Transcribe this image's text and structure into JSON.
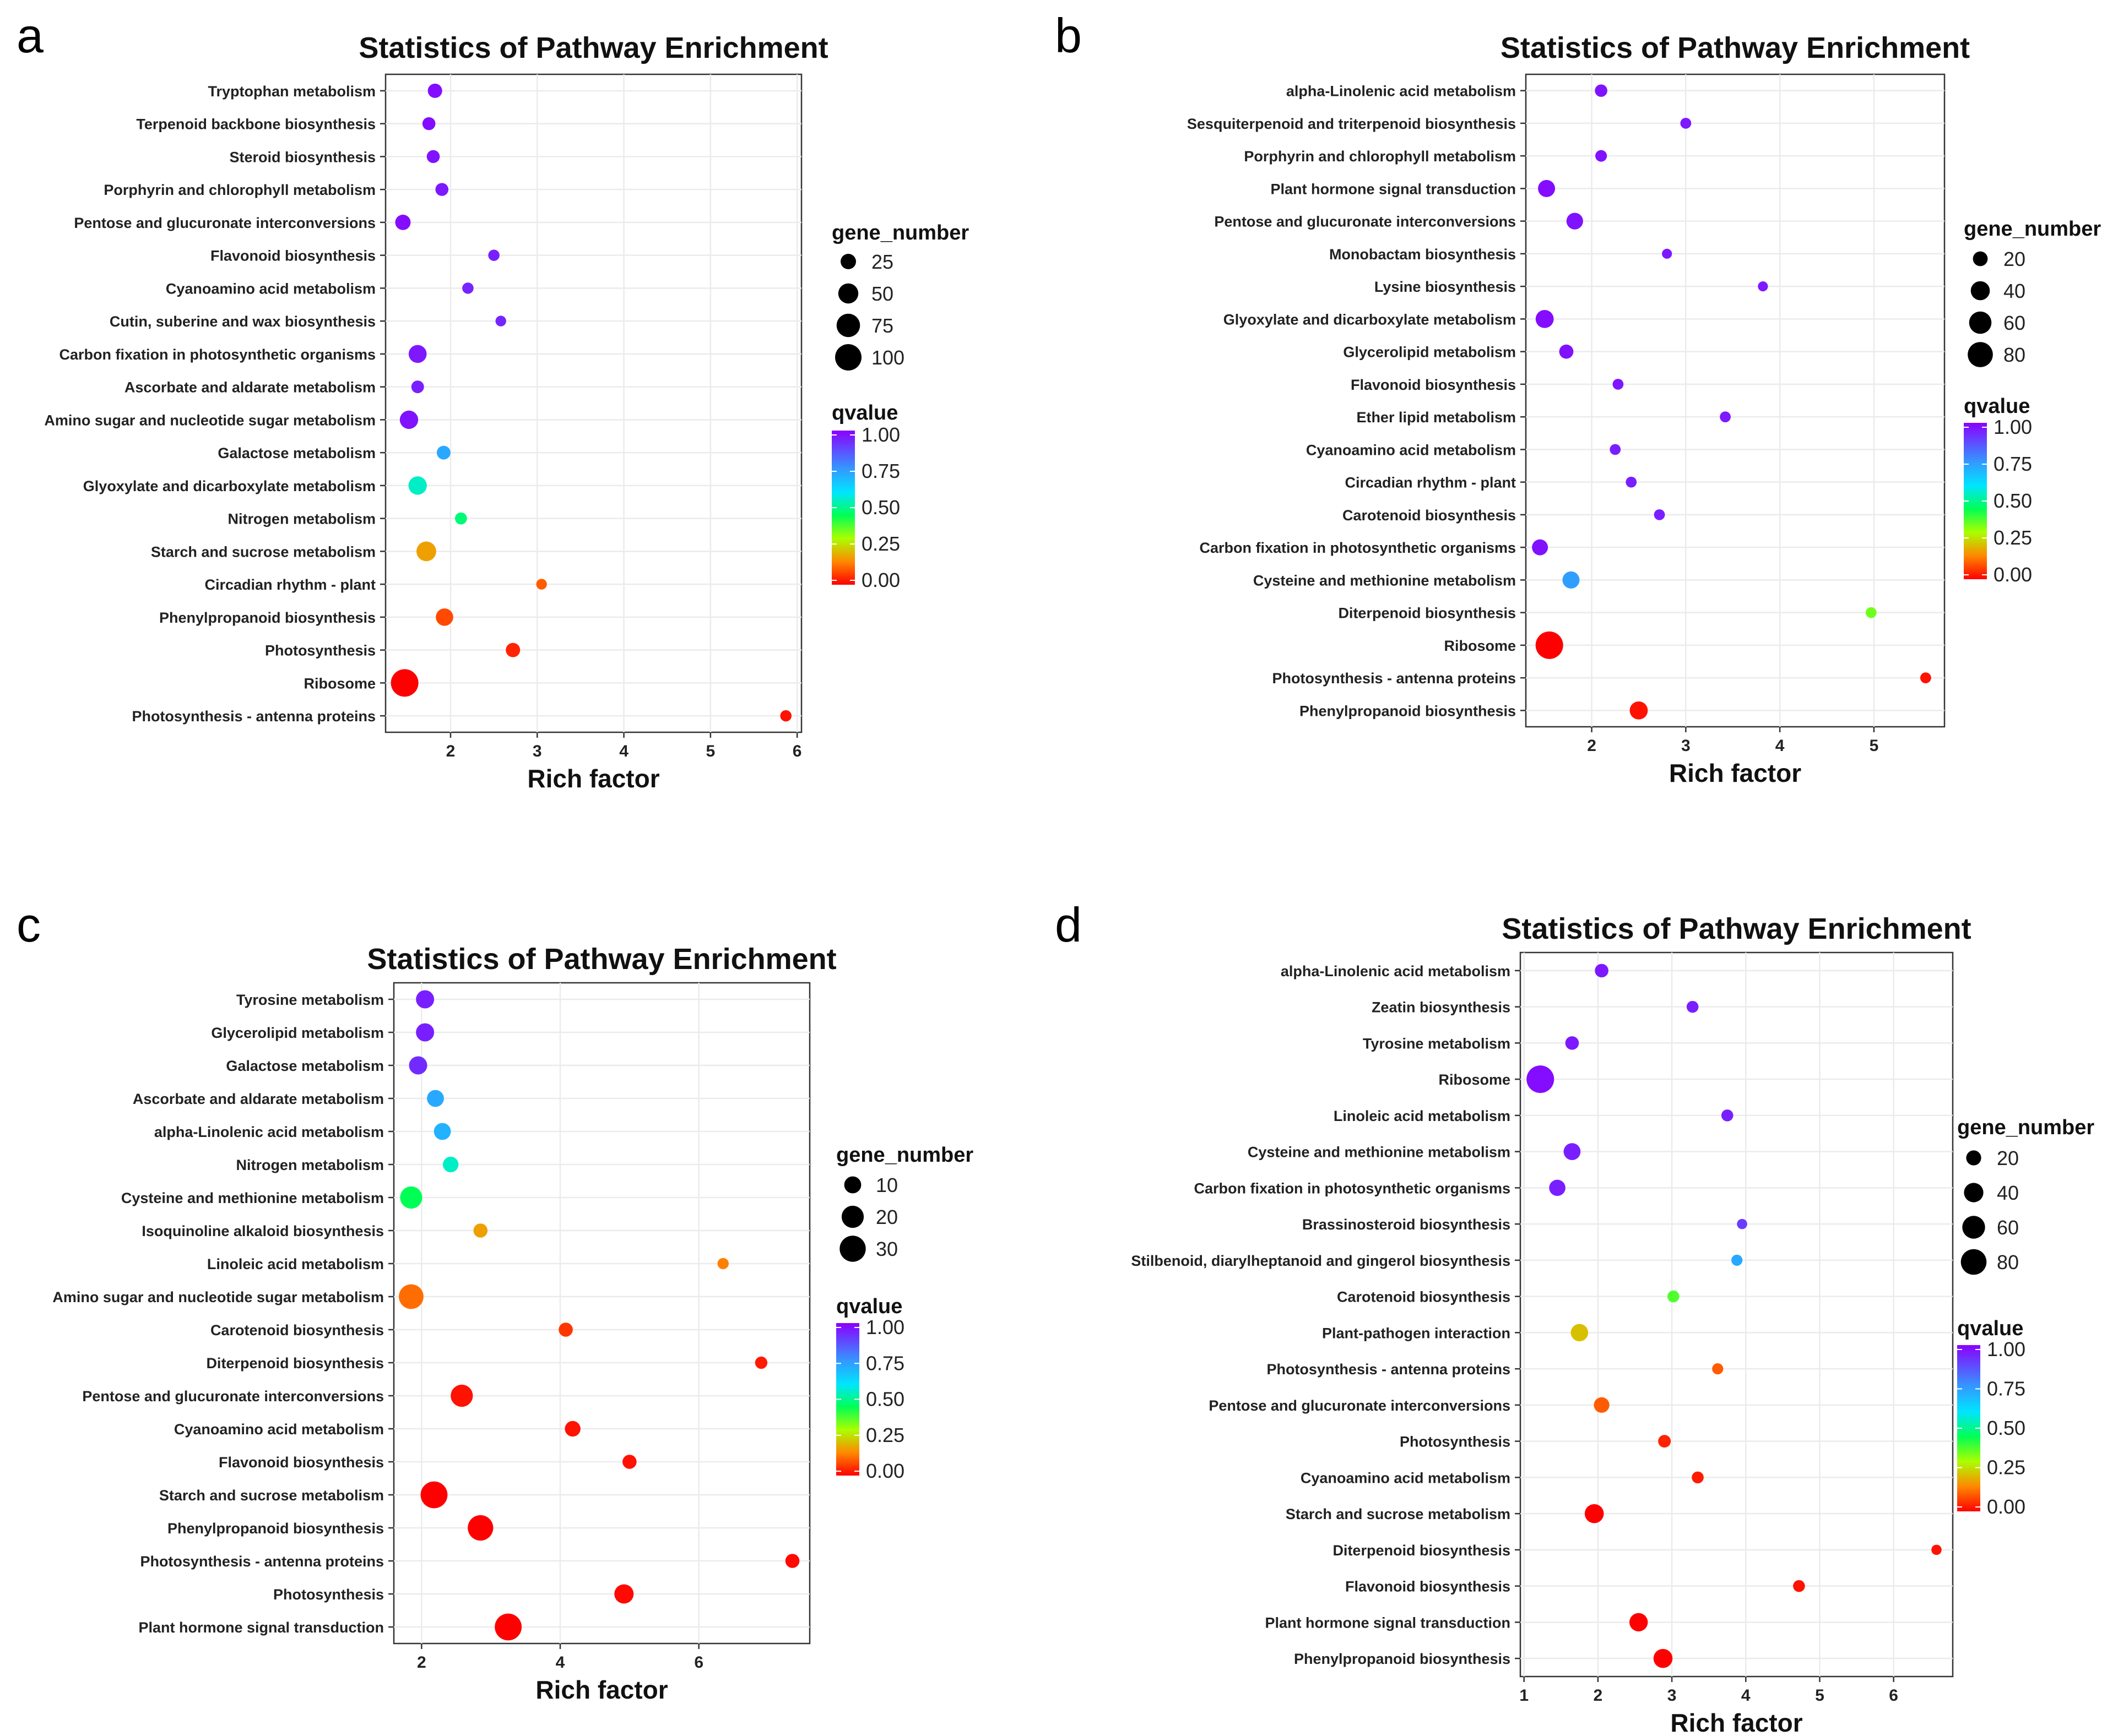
{
  "panels": [
    {
      "letter": "a",
      "chart_data": {
        "type": "scatter",
        "title": "Statistics of Pathway Enrichment",
        "xlabel": "Rich factor",
        "ylabel": "",
        "xlim": [
          1.25,
          6.05
        ],
        "xticks": [
          2,
          3,
          4,
          5,
          6
        ],
        "legend_placement": "right",
        "size_legend": {
          "title": "gene_number",
          "values": [
            25,
            50,
            75,
            100
          ]
        },
        "color_legend": {
          "title": "qvalue",
          "ticks": [
            "1.00",
            "0.75",
            "0.50",
            "0.25",
            "0.00"
          ]
        },
        "points": [
          {
            "label": "Tryptophan metabolism",
            "x": 1.82,
            "gene_number": 20,
            "qvalue": 0.98
          },
          {
            "label": "Terpenoid backbone biosynthesis",
            "x": 1.75,
            "gene_number": 15,
            "qvalue": 0.98
          },
          {
            "label": "Steroid biosynthesis",
            "x": 1.8,
            "gene_number": 15,
            "qvalue": 0.97
          },
          {
            "label": "Porphyrin and chlorophyll metabolism",
            "x": 1.9,
            "gene_number": 15,
            "qvalue": 0.96
          },
          {
            "label": "Pentose and glucuronate interconversions",
            "x": 1.45,
            "gene_number": 25,
            "qvalue": 0.98
          },
          {
            "label": "Flavonoid biosynthesis",
            "x": 2.5,
            "gene_number": 10,
            "qvalue": 0.95
          },
          {
            "label": "Cyanoamino acid metabolism",
            "x": 2.2,
            "gene_number": 10,
            "qvalue": 0.94
          },
          {
            "label": "Cutin, suberine and wax biosynthesis",
            "x": 2.58,
            "gene_number": 8,
            "qvalue": 0.94
          },
          {
            "label": "Carbon fixation in photosynthetic organisms",
            "x": 1.62,
            "gene_number": 38,
            "qvalue": 0.96
          },
          {
            "label": "Ascorbate and aldarate metabolism",
            "x": 1.62,
            "gene_number": 14,
            "qvalue": 0.95
          },
          {
            "label": "Amino sugar and nucleotide sugar metabolism",
            "x": 1.52,
            "gene_number": 40,
            "qvalue": 0.97
          },
          {
            "label": "Galactose metabolism",
            "x": 1.92,
            "gene_number": 18,
            "qvalue": 0.72
          },
          {
            "label": "Glyoxylate and dicarboxylate metabolism",
            "x": 1.62,
            "gene_number": 40,
            "qvalue": 0.55
          },
          {
            "label": "Nitrogen metabolism",
            "x": 2.12,
            "gene_number": 12,
            "qvalue": 0.48
          },
          {
            "label": "Starch and sucrose metabolism",
            "x": 1.72,
            "gene_number": 48,
            "qvalue": 0.18
          },
          {
            "label": "Circadian rhythm - plant",
            "x": 3.05,
            "gene_number": 8,
            "qvalue": 0.1
          },
          {
            "label": "Phenylpropanoid biosynthesis",
            "x": 1.93,
            "gene_number": 35,
            "qvalue": 0.08
          },
          {
            "label": "Photosynthesis",
            "x": 2.72,
            "gene_number": 20,
            "qvalue": 0.04
          },
          {
            "label": "Ribosome",
            "x": 1.47,
            "gene_number": 110,
            "qvalue": 0.0
          },
          {
            "label": "Photosynthesis - antenna proteins",
            "x": 5.87,
            "gene_number": 10,
            "qvalue": 0.02
          }
        ]
      }
    },
    {
      "letter": "b",
      "chart_data": {
        "type": "scatter",
        "title": "Statistics of Pathway Enrichment",
        "xlabel": "Rich factor",
        "ylabel": "",
        "xlim": [
          1.3,
          5.75
        ],
        "xticks": [
          2,
          3,
          4,
          5
        ],
        "legend_placement": "right",
        "size_legend": {
          "title": "gene_number",
          "values": [
            20,
            40,
            60,
            80
          ]
        },
        "color_legend": {
          "title": "qvalue",
          "ticks": [
            "1.00",
            "0.75",
            "0.50",
            "0.25",
            "0.00"
          ]
        },
        "points": [
          {
            "label": "alpha-Linolenic acid metabolism",
            "x": 2.1,
            "gene_number": 12,
            "qvalue": 0.97
          },
          {
            "label": "Sesquiterpenoid and triterpenoid biosynthesis",
            "x": 3.0,
            "gene_number": 8,
            "qvalue": 0.96
          },
          {
            "label": "Porphyrin and chlorophyll metabolism",
            "x": 2.1,
            "gene_number": 10,
            "qvalue": 0.97
          },
          {
            "label": "Plant hormone signal transduction",
            "x": 1.52,
            "gene_number": 30,
            "qvalue": 0.98
          },
          {
            "label": "Pentose and glucuronate interconversions",
            "x": 1.82,
            "gene_number": 28,
            "qvalue": 0.97
          },
          {
            "label": "Monobactam biosynthesis",
            "x": 2.8,
            "gene_number": 6,
            "qvalue": 0.96
          },
          {
            "label": "Lysine biosynthesis",
            "x": 3.82,
            "gene_number": 6,
            "qvalue": 0.96
          },
          {
            "label": "Glyoxylate and dicarboxylate metabolism",
            "x": 1.5,
            "gene_number": 35,
            "qvalue": 0.98
          },
          {
            "label": "Glycerolipid metabolism",
            "x": 1.73,
            "gene_number": 18,
            "qvalue": 0.97
          },
          {
            "label": "Flavonoid biosynthesis",
            "x": 2.28,
            "gene_number": 8,
            "qvalue": 0.96
          },
          {
            "label": "Ether lipid metabolism",
            "x": 3.42,
            "gene_number": 8,
            "qvalue": 0.96
          },
          {
            "label": "Cyanoamino acid metabolism",
            "x": 2.25,
            "gene_number": 8,
            "qvalue": 0.95
          },
          {
            "label": "Circadian rhythm - plant",
            "x": 2.42,
            "gene_number": 8,
            "qvalue": 0.95
          },
          {
            "label": "Carotenoid biosynthesis",
            "x": 2.72,
            "gene_number": 8,
            "qvalue": 0.95
          },
          {
            "label": "Carbon fixation in photosynthetic organisms",
            "x": 1.45,
            "gene_number": 25,
            "qvalue": 0.97
          },
          {
            "label": "Cysteine and methionine metabolism",
            "x": 1.78,
            "gene_number": 30,
            "qvalue": 0.74
          },
          {
            "label": "Diterpenoid biosynthesis",
            "x": 4.97,
            "gene_number": 8,
            "qvalue": 0.35
          },
          {
            "label": "Ribosome",
            "x": 1.55,
            "gene_number": 100,
            "qvalue": 0.0
          },
          {
            "label": "Photosynthesis - antenna proteins",
            "x": 5.55,
            "gene_number": 8,
            "qvalue": 0.02
          },
          {
            "label": "Phenylpropanoid biosynthesis",
            "x": 2.5,
            "gene_number": 35,
            "qvalue": 0.02
          }
        ]
      }
    },
    {
      "letter": "c",
      "chart_data": {
        "type": "scatter",
        "title": "Statistics of Pathway Enrichment",
        "xlabel": "Rich factor",
        "ylabel": "",
        "xlim": [
          1.6,
          7.6
        ],
        "xticks": [
          2,
          4,
          6
        ],
        "legend_placement": "right",
        "size_legend": {
          "title": "gene_number",
          "values": [
            10,
            20,
            30
          ]
        },
        "color_legend": {
          "title": "qvalue",
          "ticks": [
            "1.00",
            "0.75",
            "0.50",
            "0.25",
            "0.00"
          ]
        },
        "points": [
          {
            "label": "Tyrosine metabolism",
            "x": 2.05,
            "gene_number": 12,
            "qvalue": 0.95
          },
          {
            "label": "Glycerolipid metabolism",
            "x": 2.05,
            "gene_number": 12,
            "qvalue": 0.95
          },
          {
            "label": "Galactose metabolism",
            "x": 1.95,
            "gene_number": 12,
            "qvalue": 0.93
          },
          {
            "label": "Ascorbate and aldarate metabolism",
            "x": 2.2,
            "gene_number": 10,
            "qvalue": 0.72
          },
          {
            "label": "alpha-Linolenic acid metabolism",
            "x": 2.3,
            "gene_number": 10,
            "qvalue": 0.7
          },
          {
            "label": "Nitrogen metabolism",
            "x": 2.42,
            "gene_number": 8,
            "qvalue": 0.55
          },
          {
            "label": "Cysteine and methionine metabolism",
            "x": 1.85,
            "gene_number": 20,
            "qvalue": 0.45
          },
          {
            "label": "Isoquinoline alkaloid biosynthesis",
            "x": 2.85,
            "gene_number": 6,
            "qvalue": 0.18
          },
          {
            "label": "Linoleic acid metabolism",
            "x": 6.35,
            "gene_number": 3,
            "qvalue": 0.14
          },
          {
            "label": "Amino sugar and nucleotide sugar metabolism",
            "x": 1.85,
            "gene_number": 26,
            "qvalue": 0.12
          },
          {
            "label": "Carotenoid biosynthesis",
            "x": 4.08,
            "gene_number": 6,
            "qvalue": 0.06
          },
          {
            "label": "Diterpenoid biosynthesis",
            "x": 6.9,
            "gene_number": 4,
            "qvalue": 0.03
          },
          {
            "label": "Pentose and glucuronate interconversions",
            "x": 2.58,
            "gene_number": 20,
            "qvalue": 0.02
          },
          {
            "label": "Cyanoamino acid metabolism",
            "x": 4.18,
            "gene_number": 8,
            "qvalue": 0.02
          },
          {
            "label": "Flavonoid biosynthesis",
            "x": 5.0,
            "gene_number": 6,
            "qvalue": 0.02
          },
          {
            "label": "Starch and sucrose metabolism",
            "x": 2.18,
            "gene_number": 32,
            "qvalue": 0.0
          },
          {
            "label": "Phenylpropanoid biosynthesis",
            "x": 2.85,
            "gene_number": 28,
            "qvalue": 0.0
          },
          {
            "label": "Photosynthesis - antenna proteins",
            "x": 7.35,
            "gene_number": 6,
            "qvalue": 0.01
          },
          {
            "label": "Photosynthesis",
            "x": 4.92,
            "gene_number": 14,
            "qvalue": 0.01
          },
          {
            "label": "Plant hormone signal transduction",
            "x": 3.25,
            "gene_number": 32,
            "qvalue": 0.0
          }
        ]
      }
    },
    {
      "letter": "d",
      "chart_data": {
        "type": "scatter",
        "title": "Statistics of Pathway Enrichment",
        "xlabel": "Rich factor",
        "ylabel": "",
        "xlim": [
          0.95,
          6.8
        ],
        "xticks": [
          1,
          2,
          3,
          4,
          5,
          6
        ],
        "legend_placement": "right",
        "size_legend": {
          "title": "gene_number",
          "values": [
            20,
            40,
            60,
            80
          ]
        },
        "color_legend": {
          "title": "qvalue",
          "ticks": [
            "1.00",
            "0.75",
            "0.50",
            "0.25",
            "0.00"
          ]
        },
        "points": [
          {
            "label": "alpha-Linolenic acid metabolism",
            "x": 2.05,
            "gene_number": 15,
            "qvalue": 0.96
          },
          {
            "label": "Zeatin biosynthesis",
            "x": 3.28,
            "gene_number": 10,
            "qvalue": 0.95
          },
          {
            "label": "Tyrosine metabolism",
            "x": 1.65,
            "gene_number": 15,
            "qvalue": 0.96
          },
          {
            "label": "Ribosome",
            "x": 1.22,
            "gene_number": 95,
            "qvalue": 0.98
          },
          {
            "label": "Linoleic acid metabolism",
            "x": 3.75,
            "gene_number": 10,
            "qvalue": 0.95
          },
          {
            "label": "Cysteine and methionine metabolism",
            "x": 1.65,
            "gene_number": 28,
            "qvalue": 0.95
          },
          {
            "label": "Carbon fixation in photosynthetic organisms",
            "x": 1.45,
            "gene_number": 25,
            "qvalue": 0.95
          },
          {
            "label": "Brassinosteroid biosynthesis",
            "x": 3.95,
            "gene_number": 6,
            "qvalue": 0.9
          },
          {
            "label": "Stilbenoid, diarylheptanoid and gingerol biosynthesis",
            "x": 3.88,
            "gene_number": 8,
            "qvalue": 0.72
          },
          {
            "label": "Carotenoid biosynthesis",
            "x": 3.02,
            "gene_number": 10,
            "qvalue": 0.38
          },
          {
            "label": "Plant-pathogen interaction",
            "x": 1.75,
            "gene_number": 30,
            "qvalue": 0.22
          },
          {
            "label": "Photosynthesis - antenna proteins",
            "x": 3.62,
            "gene_number": 8,
            "qvalue": 0.1
          },
          {
            "label": "Pentose and glucuronate interconversions",
            "x": 2.05,
            "gene_number": 22,
            "qvalue": 0.1
          },
          {
            "label": "Photosynthesis",
            "x": 2.9,
            "gene_number": 12,
            "qvalue": 0.04
          },
          {
            "label": "Cyanoamino acid metabolism",
            "x": 3.35,
            "gene_number": 10,
            "qvalue": 0.03
          },
          {
            "label": "Starch and sucrose metabolism",
            "x": 1.95,
            "gene_number": 38,
            "qvalue": 0.0
          },
          {
            "label": "Diterpenoid biosynthesis",
            "x": 6.58,
            "gene_number": 6,
            "qvalue": 0.02
          },
          {
            "label": "Flavonoid biosynthesis",
            "x": 4.72,
            "gene_number": 10,
            "qvalue": 0.02
          },
          {
            "label": "Plant hormone signal transduction",
            "x": 2.55,
            "gene_number": 35,
            "qvalue": 0.0
          },
          {
            "label": "Phenylpropanoid biosynthesis",
            "x": 2.88,
            "gene_number": 38,
            "qvalue": 0.0
          }
        ]
      }
    }
  ]
}
